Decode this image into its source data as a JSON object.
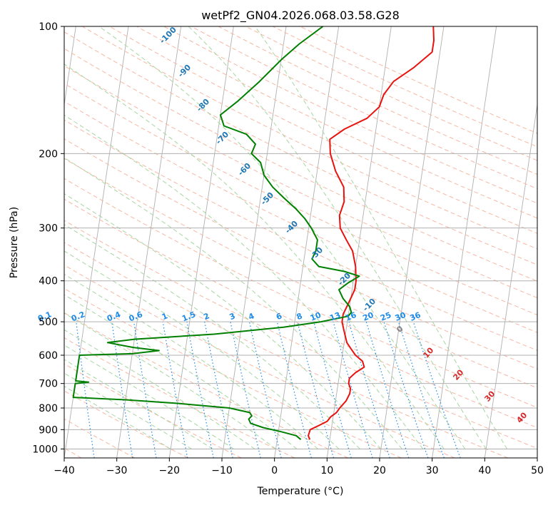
{
  "chart_data": {
    "type": "line",
    "title": "wetPf2_GN04.2026.068.03.58.G28",
    "xlabel": "Temperature (°C)",
    "ylabel": "Pressure (hPa)",
    "xlim": [
      -40,
      50
    ],
    "ylim": [
      1050,
      100
    ],
    "y_scale": "log",
    "x_ticks": [
      -40,
      -30,
      -20,
      -10,
      0,
      10,
      20,
      30,
      40,
      50
    ],
    "x_tick_labels": [
      "−40",
      "−30",
      "−20",
      "−10",
      "0",
      "10",
      "20",
      "30",
      "40",
      "50"
    ],
    "y_ticks": [
      100,
      200,
      300,
      400,
      500,
      600,
      700,
      800,
      900,
      1000
    ],
    "y_tick_labels": [
      "100",
      "200",
      "300",
      "400",
      "500",
      "600",
      "700",
      "800",
      "900",
      "1000"
    ],
    "grid": true,
    "series": [
      {
        "color": "#e8130f",
        "points": [
          [
            950,
            6.2
          ],
          [
            930,
            5.8
          ],
          [
            900,
            6.0
          ],
          [
            880,
            7.5
          ],
          [
            860,
            9.0
          ],
          [
            840,
            9.5
          ],
          [
            820,
            10.5
          ],
          [
            800,
            11.0
          ],
          [
            770,
            12.0
          ],
          [
            740,
            12.5
          ],
          [
            720,
            12.5
          ],
          [
            700,
            12.0
          ],
          [
            680,
            12.0
          ],
          [
            660,
            13.0
          ],
          [
            640,
            14.5
          ],
          [
            620,
            14.0
          ],
          [
            600,
            12.5
          ],
          [
            580,
            11.5
          ],
          [
            560,
            10.5
          ],
          [
            540,
            10.0
          ],
          [
            520,
            9.5
          ],
          [
            500,
            9.0
          ],
          [
            480,
            9.0
          ],
          [
            460,
            9.5
          ],
          [
            440,
            10.0
          ],
          [
            420,
            10.5
          ],
          [
            400,
            10.5
          ],
          [
            370,
            10.0
          ],
          [
            340,
            9.0
          ],
          [
            320,
            7.5
          ],
          [
            300,
            6.0
          ],
          [
            280,
            5.5
          ],
          [
            260,
            6.0
          ],
          [
            240,
            5.5
          ],
          [
            220,
            3.5
          ],
          [
            200,
            2.0
          ],
          [
            185,
            1.5
          ],
          [
            175,
            4.0
          ],
          [
            165,
            8.0
          ],
          [
            155,
            10.0
          ],
          [
            145,
            10.5
          ],
          [
            135,
            12.0
          ],
          [
            125,
            15.5
          ],
          [
            115,
            18.5
          ],
          [
            108,
            18.5
          ],
          [
            100,
            18.0
          ]
        ]
      },
      {
        "color": "#008000",
        "points": [
          [
            950,
            4.5
          ],
          [
            930,
            3.5
          ],
          [
            910,
            0.5
          ],
          [
            890,
            -3.0
          ],
          [
            870,
            -5.5
          ],
          [
            850,
            -6.0
          ],
          [
            835,
            -5.5
          ],
          [
            820,
            -6.0
          ],
          [
            800,
            -10.0
          ],
          [
            780,
            -20.0
          ],
          [
            765,
            -30.0
          ],
          [
            755,
            -40.0
          ],
          [
            700,
            -40.0
          ],
          [
            695,
            -37.5
          ],
          [
            690,
            -40.0
          ],
          [
            600,
            -40.0
          ],
          [
            595,
            -30.0
          ],
          [
            585,
            -25.0
          ],
          [
            575,
            -30.0
          ],
          [
            560,
            -35.0
          ],
          [
            550,
            -30.0
          ],
          [
            535,
            -15.0
          ],
          [
            515,
            -2.0
          ],
          [
            500,
            5.0
          ],
          [
            485,
            10.0
          ],
          [
            475,
            10.5
          ],
          [
            460,
            10.0
          ],
          [
            440,
            8.5
          ],
          [
            420,
            7.5
          ],
          [
            405,
            9.0
          ],
          [
            390,
            11.0
          ],
          [
            380,
            8.0
          ],
          [
            370,
            3.0
          ],
          [
            355,
            1.5
          ],
          [
            340,
            2.0
          ],
          [
            320,
            2.0
          ],
          [
            300,
            0.5
          ],
          [
            285,
            -1.0
          ],
          [
            270,
            -3.0
          ],
          [
            255,
            -5.5
          ],
          [
            240,
            -8.0
          ],
          [
            225,
            -10.0
          ],
          [
            210,
            -11.0
          ],
          [
            200,
            -13.0
          ],
          [
            190,
            -12.5
          ],
          [
            180,
            -14.5
          ],
          [
            172,
            -19.0
          ],
          [
            162,
            -20.0
          ],
          [
            150,
            -17.0
          ],
          [
            135,
            -13.5
          ],
          [
            120,
            -10.0
          ],
          [
            110,
            -7.0
          ],
          [
            100,
            -3.0
          ]
        ]
      }
    ],
    "dry_adiabat_labels": [
      "-100",
      "-90",
      "-80",
      "-70",
      "-60",
      "-50",
      "-40",
      "-30",
      "-20",
      "-10"
    ],
    "mixing_ratio_labels": [
      "0.1",
      "0.2",
      "0.4",
      "0.6",
      "1",
      "1.5",
      "2",
      "3",
      "4",
      "6",
      "8",
      "10",
      "13",
      "16",
      "20",
      "25",
      "30",
      "36"
    ],
    "moist_adiabat_labels": [
      "0",
      "10",
      "20",
      "30",
      "40"
    ]
  }
}
